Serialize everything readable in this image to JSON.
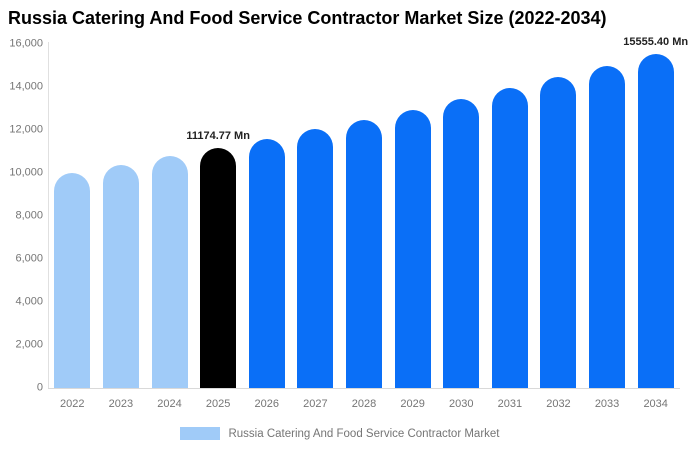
{
  "title": "Russia Catering And Food Service Contractor Market Size (2022-2034)",
  "chart_data": {
    "type": "bar",
    "title": "Russia Catering And Food Service Contractor Market Size (2022-2034)",
    "categories": [
      "2022",
      "2023",
      "2024",
      "2025",
      "2026",
      "2027",
      "2028",
      "2029",
      "2030",
      "2031",
      "2032",
      "2033",
      "2034"
    ],
    "values": [
      10008,
      10383,
      10771,
      11174.77,
      11593,
      12027,
      12478,
      12945,
      13430,
      13932,
      14454,
      14995,
      15555.4
    ],
    "unit": "Mn",
    "xlabel": "",
    "ylabel": "",
    "ylim": [
      0,
      16000
    ],
    "ytick_labels": [
      "0",
      "2,000",
      "4,000",
      "6,000",
      "8,000",
      "10,000",
      "12,000",
      "14,000",
      "16,000"
    ],
    "grid": false,
    "bar_colors": [
      "#A0CBF8",
      "#A0CBF8",
      "#A0CBF8",
      "#000000",
      "#0A6FF7",
      "#0A6FF7",
      "#0A6FF7",
      "#0A6FF7",
      "#0A6FF7",
      "#0A6FF7",
      "#0A6FF7",
      "#0A6FF7",
      "#0A6FF7"
    ],
    "annotations": [
      {
        "category": "2025",
        "text": "11174.77 Mn"
      },
      {
        "category": "2034",
        "text": "15555.40 Mn"
      }
    ],
    "legend": {
      "position": "bottom",
      "label": "Russia Catering And Food Service Contractor Market",
      "swatch_color": "#A0CBF8"
    }
  },
  "colors": {
    "historical_bar": "#A0CBF8",
    "base_year_bar": "#000000",
    "forecast_bar": "#0A6FF7",
    "axis_text": "#757575",
    "axis_line": "#e0e0e0",
    "annotation_text": "#222222",
    "title_text": "#000000",
    "background": "#ffffff"
  }
}
